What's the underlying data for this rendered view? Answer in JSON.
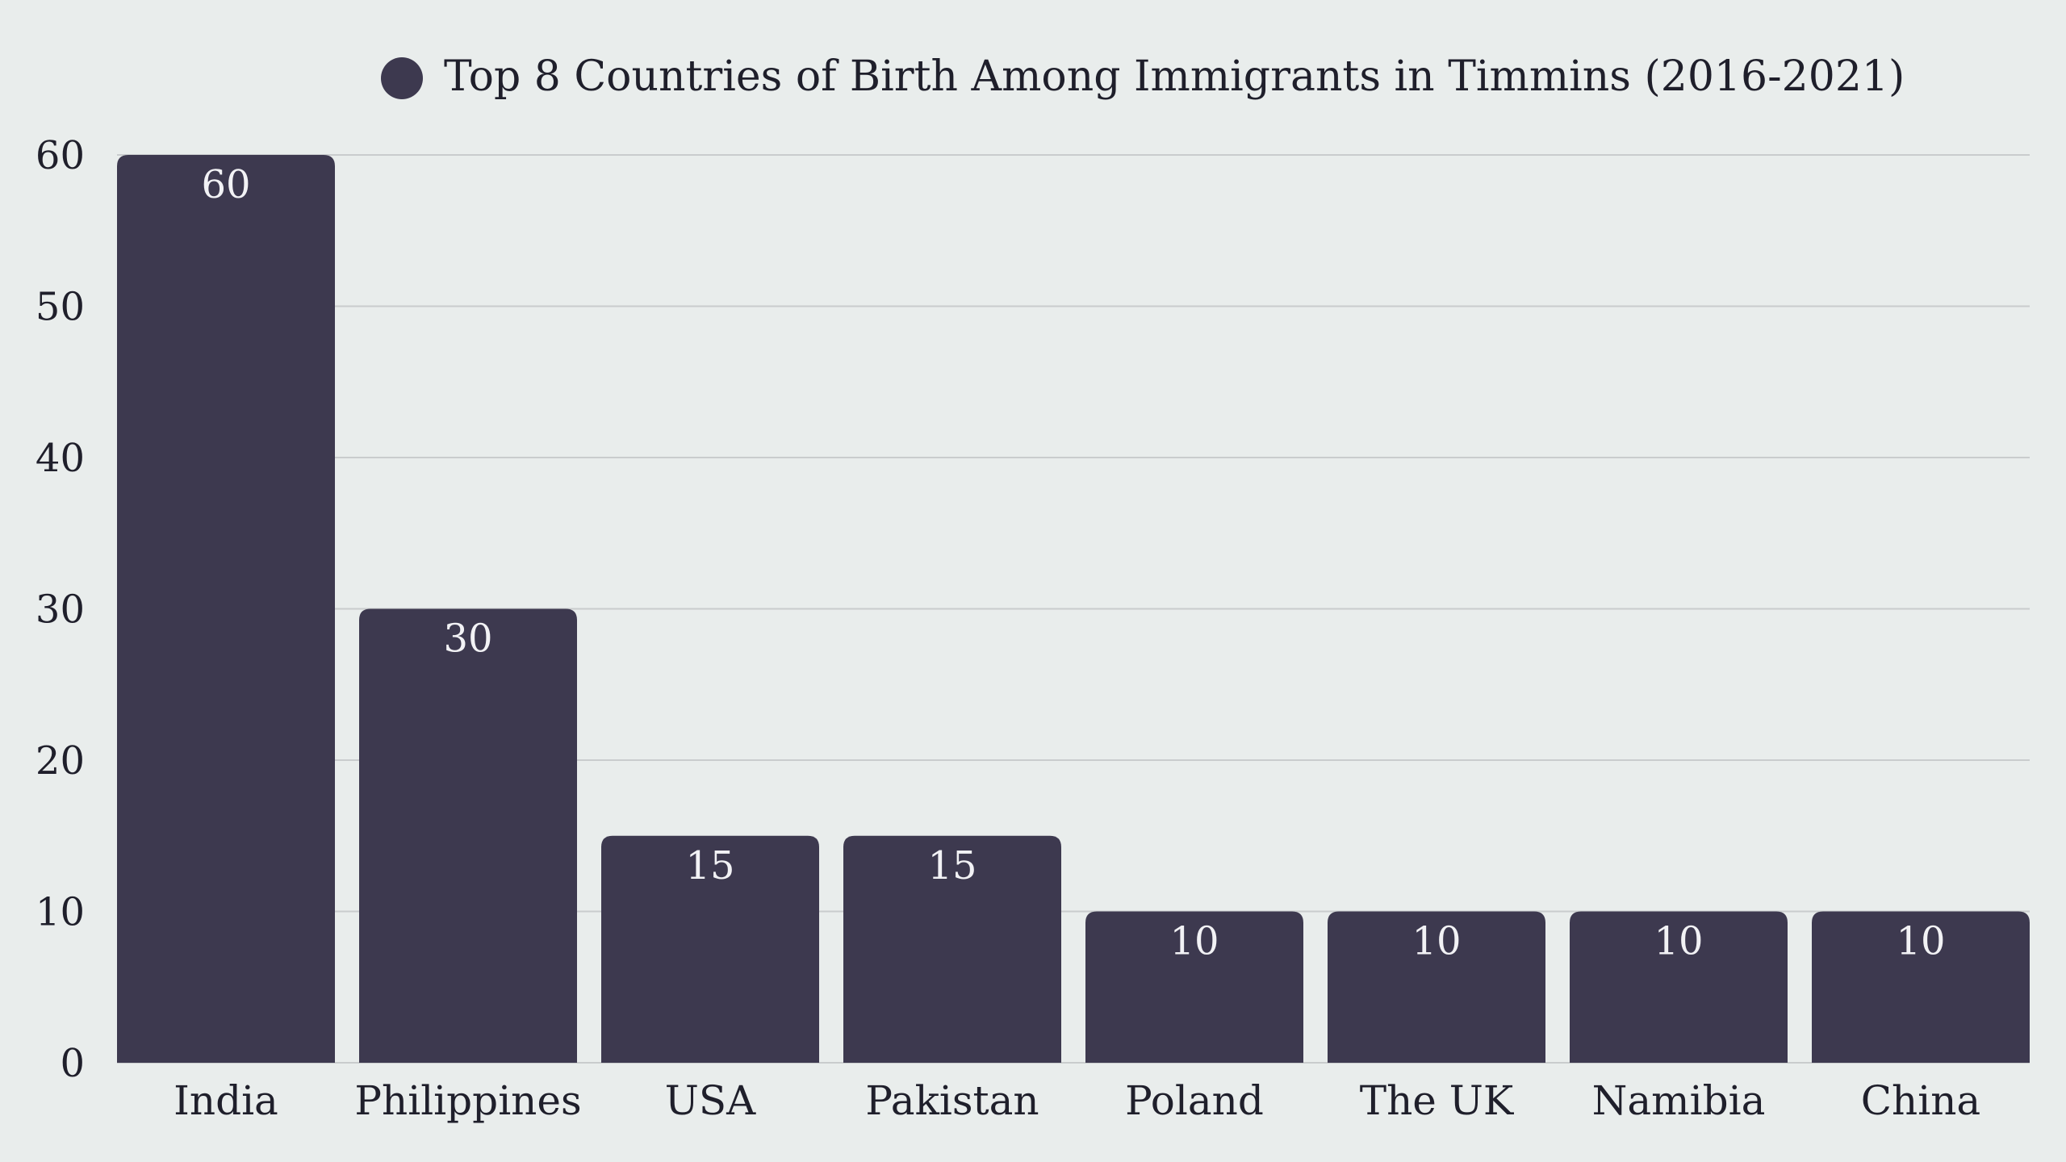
{
  "chart_data": {
    "type": "bar",
    "title": "",
    "legend": {
      "label": "Top 8 Countries of Birth Among Immigrants in Timmins (2016-2021)",
      "position": "top-center"
    },
    "categories": [
      "India",
      "Philippines",
      "USA",
      "Pakistan",
      "Poland",
      "The UK",
      "Namibia",
      "China"
    ],
    "series": [
      {
        "name": "Top 8 Countries of Birth Among Immigrants in Timmins (2016-2021)",
        "values": [
          60,
          30,
          15,
          15,
          10,
          10,
          10,
          10
        ],
        "color": "#3d394f"
      }
    ],
    "data_labels": true,
    "xlabel": "",
    "ylabel": "",
    "ylim": [
      0,
      60
    ],
    "yticks": [
      0,
      10,
      20,
      30,
      40,
      50,
      60
    ],
    "grid": true,
    "colors": {
      "background": "#e9edec",
      "bar": "#3d394f",
      "grid": "#c9cccd",
      "text": "#1f1f2b",
      "data_label": "#f2f2f5"
    }
  }
}
